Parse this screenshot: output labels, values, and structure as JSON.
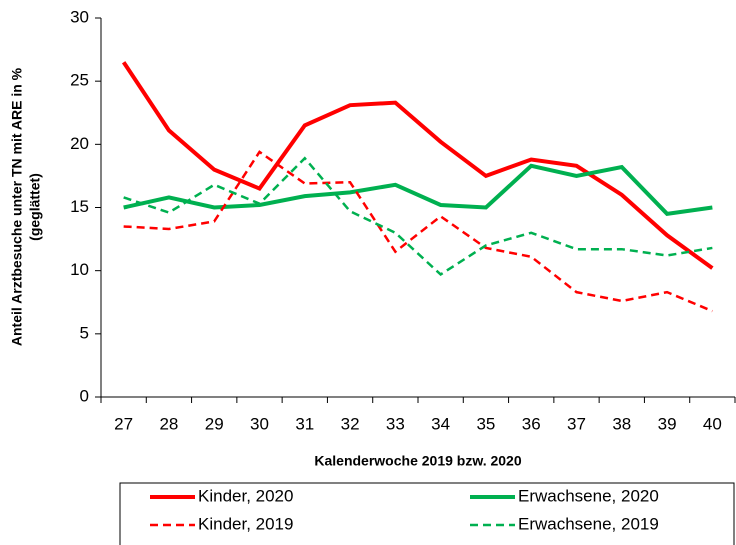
{
  "chart_data": {
    "type": "line",
    "xlabel": "Kalenderwoche 2019 bzw. 2020",
    "ylabel": [
      "Anteil Arztbesuche unter TN mit ARE in %",
      "(geglättet)"
    ],
    "categories": [
      "27",
      "28",
      "29",
      "30",
      "31",
      "32",
      "33",
      "34",
      "35",
      "36",
      "37",
      "38",
      "39",
      "40"
    ],
    "ylim": [
      0,
      30
    ],
    "yticks": [
      0,
      5,
      10,
      15,
      20,
      25,
      30
    ],
    "series": [
      {
        "name": "Kinder, 2020",
        "color": "#ff0000",
        "style": "solid",
        "values": [
          26.5,
          21.1,
          18.0,
          16.5,
          21.5,
          23.1,
          23.3,
          20.2,
          17.5,
          18.8,
          18.3,
          16.0,
          12.8,
          10.2
        ]
      },
      {
        "name": "Erwachsene, 2020",
        "color": "#00b050",
        "style": "solid",
        "values": [
          15.0,
          15.8,
          15.0,
          15.2,
          15.9,
          16.2,
          16.8,
          15.2,
          15.0,
          18.3,
          17.5,
          18.2,
          14.5,
          15.0
        ]
      },
      {
        "name": "Kinder, 2019",
        "color": "#ff0000",
        "style": "dashed",
        "values": [
          13.5,
          13.3,
          13.9,
          19.4,
          16.9,
          17.0,
          11.5,
          14.3,
          11.8,
          11.1,
          8.3,
          7.6,
          8.3,
          6.8
        ]
      },
      {
        "name": "Erwachsene, 2019",
        "color": "#00b050",
        "style": "dashed",
        "values": [
          15.8,
          14.6,
          16.8,
          15.3,
          18.9,
          14.7,
          13.0,
          9.7,
          12.0,
          13.0,
          11.7,
          11.7,
          11.2,
          11.8
        ]
      }
    ]
  }
}
